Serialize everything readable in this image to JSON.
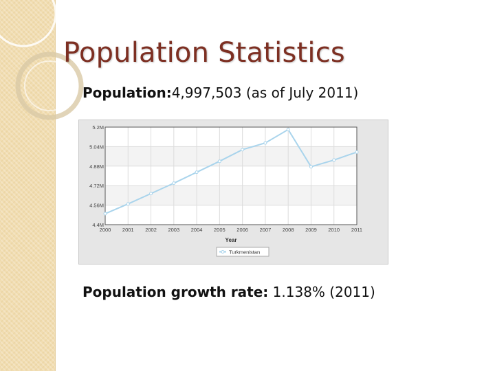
{
  "slide": {
    "title": "Population Statistics",
    "population_label": "Population:",
    "population_value": "4,997,503 (as of July 2011)",
    "growth_label": "Population growth rate:",
    "growth_value": " 1.138% (2011)"
  },
  "chart_data": {
    "type": "line",
    "xlabel": "Year",
    "ylabel": "",
    "x": [
      2000,
      2001,
      2002,
      2003,
      2004,
      2005,
      2006,
      2007,
      2008,
      2009,
      2010,
      2011
    ],
    "ylim": [
      4400000,
      5200000
    ],
    "yticks": [
      4400000,
      4560000,
      4720000,
      4880000,
      5040000,
      5200000
    ],
    "ytick_labels": [
      "4.4M",
      "4.56M",
      "4.72M",
      "4.88M",
      "5.04M",
      "5.2M"
    ],
    "series": [
      {
        "name": "Turkmenistan",
        "values": [
          4490000,
          4570000,
          4655000,
          4740000,
          4830000,
          4920000,
          5015000,
          5070000,
          5180000,
          4875000,
          4930000,
          4995000
        ]
      }
    ],
    "grid": true,
    "legend": "bottom",
    "colors": {
      "line": "#a9d4ec",
      "plot_bg": "#ffffff",
      "band": "#f3f3f3",
      "panel": "#e6e6e6"
    }
  }
}
